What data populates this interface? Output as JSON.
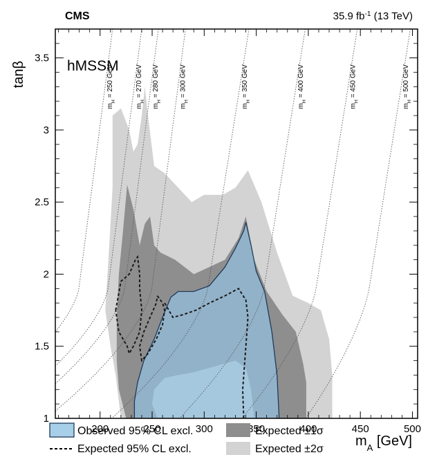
{
  "header": {
    "experiment": "CMS",
    "lumi": "35.9 fb",
    "lumi_exp": "-1",
    "energy": " (13 TeV)"
  },
  "chart_data": {
    "type": "area",
    "title": "",
    "model_label": "hMSSM",
    "xlabel_base": "m",
    "xlabel_sub": "A",
    "xlabel_unit": " [GeV]",
    "ylabel": "tanβ",
    "xlim": [
      157,
      505
    ],
    "ylim": [
      1.0,
      3.7
    ],
    "xticks": [
      200,
      250,
      300,
      350,
      400,
      450,
      500
    ],
    "yticks": [
      1,
      1.5,
      2,
      2.5,
      3,
      3.5
    ],
    "grid": false,
    "legend_position": "bottom",
    "legend": [
      {
        "label": "Observed 95% CL excl.",
        "style": "fill",
        "color": "#a8cfe8"
      },
      {
        "label": "Expected ±1σ",
        "style": "fill",
        "color": "#8e8e8e"
      },
      {
        "label": "Expected 95% CL excl.",
        "style": "dashed",
        "color": "#000000"
      },
      {
        "label": "Expected ±2σ",
        "style": "fill",
        "color": "#d3d3d3"
      }
    ],
    "colors": {
      "band2": "#d3d3d3",
      "band1": "#8e8e8e",
      "observed_fill": "#92b4cc",
      "observed_inner": "#a6c8de",
      "observed_line": "#1e3a5a",
      "expected_line": "#1a1a1a",
      "mH_line": "#555555"
    },
    "expected_2sigma": [
      [
        220,
        1.0
      ],
      [
        215,
        1.3
      ],
      [
        210,
        1.5
      ],
      [
        205,
        1.75
      ],
      [
        208,
        2.1
      ],
      [
        212,
        2.6
      ],
      [
        212,
        2.9
      ],
      [
        212,
        3.1
      ],
      [
        220,
        3.15
      ],
      [
        228,
        3.0
      ],
      [
        232,
        2.85
      ],
      [
        236,
        2.9
      ],
      [
        240,
        3.1
      ],
      [
        243,
        3.3
      ],
      [
        246,
        3.1
      ],
      [
        252,
        2.75
      ],
      [
        262,
        2.7
      ],
      [
        275,
        2.6
      ],
      [
        288,
        2.5
      ],
      [
        300,
        2.55
      ],
      [
        318,
        2.55
      ],
      [
        330,
        2.6
      ],
      [
        342,
        2.72
      ],
      [
        355,
        2.5
      ],
      [
        370,
        2.15
      ],
      [
        385,
        1.85
      ],
      [
        400,
        1.8
      ],
      [
        412,
        1.75
      ],
      [
        420,
        1.55
      ],
      [
        423,
        1.3
      ],
      [
        423,
        1.0
      ]
    ],
    "expected_1sigma": [
      [
        225,
        1.0
      ],
      [
        218,
        1.2
      ],
      [
        216,
        1.4
      ],
      [
        216,
        1.7
      ],
      [
        218,
        2.0
      ],
      [
        222,
        2.3
      ],
      [
        226,
        2.62
      ],
      [
        232,
        2.45
      ],
      [
        238,
        2.2
      ],
      [
        243,
        2.35
      ],
      [
        248,
        2.4
      ],
      [
        252,
        2.2
      ],
      [
        258,
        2.15
      ],
      [
        272,
        2.1
      ],
      [
        290,
        2.0
      ],
      [
        305,
        2.05
      ],
      [
        320,
        2.1
      ],
      [
        333,
        2.25
      ],
      [
        340,
        2.4
      ],
      [
        348,
        2.1
      ],
      [
        360,
        1.88
      ],
      [
        375,
        1.72
      ],
      [
        388,
        1.6
      ],
      [
        395,
        1.38
      ],
      [
        398,
        1.25
      ],
      [
        398,
        1.0
      ]
    ],
    "expected_median": [
      [
        215,
        1.75
      ],
      [
        220,
        1.95
      ],
      [
        228,
        2.0
      ],
      [
        234,
        2.1
      ],
      [
        236,
        2.12
      ],
      [
        238,
        2.0
      ],
      [
        238,
        1.9
      ],
      [
        240,
        1.75
      ],
      [
        238,
        1.6
      ],
      [
        232,
        1.5
      ],
      [
        228,
        1.45
      ],
      [
        226,
        1.5
      ],
      [
        222,
        1.55
      ],
      [
        218,
        1.6
      ],
      [
        215,
        1.75
      ]
    ],
    "expected_median_2": [
      [
        255,
        1.85
      ],
      [
        260,
        1.8
      ],
      [
        262,
        1.75
      ],
      [
        260,
        1.65
      ],
      [
        254,
        1.55
      ],
      [
        246,
        1.45
      ],
      [
        240,
        1.4
      ],
      [
        238,
        1.5
      ],
      [
        242,
        1.6
      ],
      [
        248,
        1.7
      ],
      [
        254,
        1.8
      ],
      [
        255,
        1.85
      ]
    ],
    "expected_median_3": [
      [
        262,
        1.8
      ],
      [
        270,
        1.7
      ],
      [
        280,
        1.72
      ],
      [
        292,
        1.75
      ],
      [
        305,
        1.8
      ],
      [
        320,
        1.85
      ],
      [
        333,
        1.9
      ],
      [
        340,
        1.82
      ],
      [
        342,
        1.7
      ],
      [
        340,
        1.5
      ],
      [
        337,
        1.2
      ],
      [
        338,
        1.0
      ]
    ],
    "observed": [
      [
        233,
        1.0
      ],
      [
        233,
        1.12
      ],
      [
        236,
        1.25
      ],
      [
        242,
        1.4
      ],
      [
        252,
        1.55
      ],
      [
        260,
        1.7
      ],
      [
        268,
        1.84
      ],
      [
        275,
        1.88
      ],
      [
        290,
        1.88
      ],
      [
        305,
        1.92
      ],
      [
        320,
        2.05
      ],
      [
        330,
        2.18
      ],
      [
        338,
        2.3
      ],
      [
        340,
        2.36
      ],
      [
        345,
        2.2
      ],
      [
        350,
        2.02
      ],
      [
        358,
        1.88
      ],
      [
        365,
        1.6
      ],
      [
        370,
        1.3
      ],
      [
        372,
        1.0
      ]
    ],
    "observed_inner": [
      [
        255,
        1.0
      ],
      [
        250,
        1.1
      ],
      [
        252,
        1.2
      ],
      [
        262,
        1.28
      ],
      [
        275,
        1.3
      ],
      [
        290,
        1.32
      ],
      [
        305,
        1.35
      ],
      [
        320,
        1.38
      ],
      [
        330,
        1.4
      ],
      [
        340,
        1.35
      ],
      [
        345,
        1.2
      ],
      [
        348,
        1.0
      ]
    ],
    "mH_contours": [
      {
        "label": "m",
        "label_sub": "H",
        "label_value": " = 250 GeV",
        "x_top": 212
      },
      {
        "label": "m",
        "label_sub": "H",
        "label_value": " = 270 GeV",
        "x_top": 240
      },
      {
        "label": "m",
        "label_sub": "H",
        "label_value": " = 280 GeV",
        "x_top": 256
      },
      {
        "label": "m",
        "label_sub": "H",
        "label_value": " = 300 GeV",
        "x_top": 282
      },
      {
        "label": "m",
        "label_sub": "H",
        "label_value": " = 350 GeV",
        "x_top": 343
      },
      {
        "label": "m",
        "label_sub": "H",
        "label_value": " = 400 GeV",
        "x_top": 397
      },
      {
        "label": "m",
        "label_sub": "H",
        "label_value": " = 450 GeV",
        "x_top": 447
      },
      {
        "label": "m",
        "label_sub": "H",
        "label_value": " = 500 GeV",
        "x_top": 498
      }
    ]
  }
}
